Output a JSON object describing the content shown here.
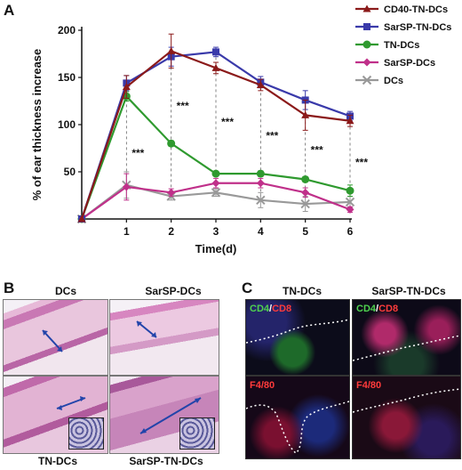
{
  "panels": {
    "A": "A",
    "B": "B",
    "C": "C"
  },
  "chart_data": {
    "type": "line",
    "xlabel": "Time(d)",
    "ylabel": "% of ear thickness increase",
    "x": [
      0,
      1,
      2,
      3,
      4,
      5,
      6
    ],
    "xticks": [
      "1",
      "2",
      "3",
      "4",
      "5",
      "6"
    ],
    "yticks": [
      "50",
      "100",
      "150",
      "200"
    ],
    "xlim": [
      0,
      6
    ],
    "ylim": [
      0,
      200
    ],
    "legend_position": "top-right",
    "series": [
      {
        "name": "CD40-TN-DCs",
        "color": "#8b1a1a",
        "marker": "triangle",
        "values": [
          0,
          140,
          178,
          160,
          142,
          110,
          104
        ],
        "err": [
          0,
          12,
          18,
          6,
          6,
          16,
          6
        ]
      },
      {
        "name": "SarSP-TN-DCs",
        "color": "#3a3aaa",
        "marker": "square",
        "values": [
          0,
          144,
          172,
          177,
          145,
          126,
          109
        ],
        "err": [
          0,
          8,
          10,
          5,
          6,
          10,
          5
        ]
      },
      {
        "name": "TN-DCs",
        "color": "#2f9a2f",
        "marker": "circle",
        "values": [
          0,
          130,
          80,
          48,
          48,
          42,
          30
        ],
        "err": [
          0,
          5,
          3,
          2,
          3,
          2,
          6
        ]
      },
      {
        "name": "SarSP-DCs",
        "color": "#c0308a",
        "marker": "diamond",
        "values": [
          0,
          34,
          28,
          38,
          38,
          28,
          10
        ],
        "err": [
          0,
          14,
          4,
          5,
          5,
          5,
          3
        ]
      },
      {
        "name": "DCs",
        "color": "#999999",
        "marker": "x",
        "values": [
          0,
          36,
          24,
          28,
          20,
          16,
          18
        ],
        "err": [
          0,
          14,
          4,
          4,
          8,
          8,
          6
        ]
      }
    ],
    "significance": [
      {
        "x": 1,
        "label": "***",
        "y": 70
      },
      {
        "x": 2,
        "label": "***",
        "y": 120
      },
      {
        "x": 3,
        "label": "***",
        "y": 103
      },
      {
        "x": 4,
        "label": "***",
        "y": 88
      },
      {
        "x": 5,
        "label": "***",
        "y": 73
      },
      {
        "x": 6,
        "label": "***",
        "y": 60
      }
    ]
  },
  "histology": {
    "top_left": "DCs",
    "top_right": "SarSP-DCs",
    "bottom_left": "TN-DCs",
    "bottom_right": "SarSP-TN-DCs"
  },
  "fluorescence": {
    "col_left": "TN-DCs",
    "col_right": "SarSP-TN-DCs",
    "tag_cd4": "CD4",
    "tag_slash": "/",
    "tag_cd8": "CD8",
    "tag_f480": "F4/80"
  }
}
